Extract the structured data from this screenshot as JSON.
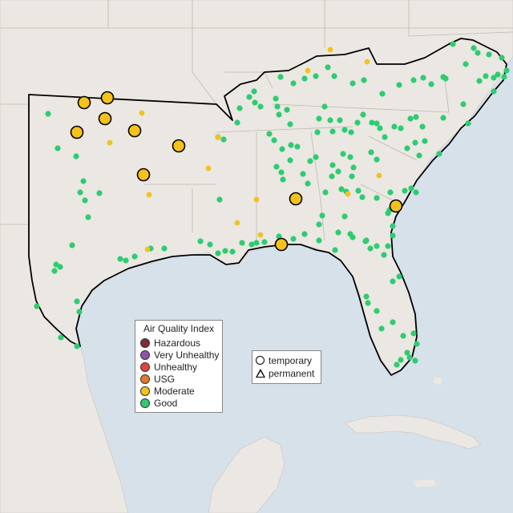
{
  "map": {
    "ocean_color": "#d6e1ea",
    "land_color": "#ebe7e2",
    "region_outline_color": "#000000"
  },
  "aqi_legend": {
    "title": "Air Quality Index",
    "categories": [
      {
        "label": "Hazardous",
        "color": "#7e2d34"
      },
      {
        "label": "Very Unhealthy",
        "color": "#8f55a5"
      },
      {
        "label": "Unhealthy",
        "color": "#e3443a"
      },
      {
        "label": "USG",
        "color": "#e3772a"
      },
      {
        "label": "Moderate",
        "color": "#f4c21a"
      },
      {
        "label": "Good",
        "color": "#2ecc71"
      }
    ]
  },
  "shape_legend": {
    "items": [
      {
        "label": "temporary",
        "icon": "circle-icon"
      },
      {
        "label": "permanent",
        "icon": "triangle-icon"
      }
    ]
  }
}
